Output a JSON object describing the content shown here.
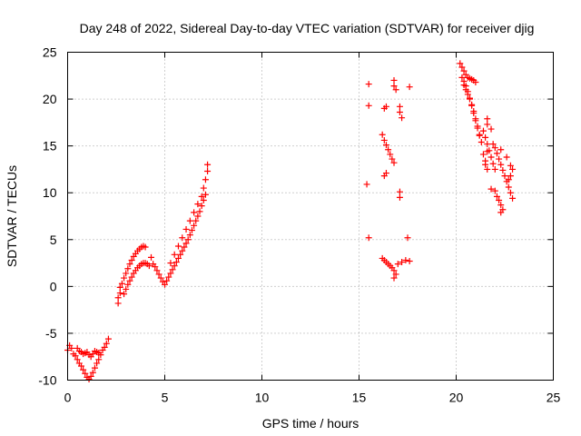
{
  "chart_data": {
    "type": "scatter",
    "title": "Day 248 of 2022, Sidereal Day-to-day VTEC variation (SDTVAR) for receiver djig",
    "xlabel": "GPS time / hours",
    "ylabel": "SDTVAR / TECUs",
    "xlim": [
      0,
      25
    ],
    "ylim": [
      -10,
      25
    ],
    "xticks": [
      0,
      5,
      10,
      15,
      20,
      25
    ],
    "yticks": [
      -10,
      -5,
      0,
      5,
      10,
      15,
      20,
      25
    ],
    "xtick_labels": [
      "0",
      "5",
      "10",
      "15",
      "20",
      "25"
    ],
    "ytick_labels": [
      "-10",
      "-5",
      "0",
      "5",
      "10",
      "15",
      "20",
      "25"
    ],
    "grid": true,
    "marker": "plus",
    "color": "#ff0000",
    "series": [
      {
        "name": "SDTVAR",
        "points": [
          [
            0.0,
            -6.8
          ],
          [
            0.1,
            -6.3
          ],
          [
            0.2,
            -6.6
          ],
          [
            0.3,
            -7.2
          ],
          [
            0.4,
            -7.4
          ],
          [
            0.5,
            -7.8
          ],
          [
            0.6,
            -8.2
          ],
          [
            0.7,
            -8.5
          ],
          [
            0.8,
            -8.9
          ],
          [
            0.9,
            -9.3
          ],
          [
            1.0,
            -9.7
          ],
          [
            1.1,
            -9.9
          ],
          [
            1.2,
            -9.6
          ],
          [
            1.3,
            -9.2
          ],
          [
            1.4,
            -8.7
          ],
          [
            1.5,
            -8.2
          ],
          [
            1.6,
            -7.8
          ],
          [
            1.7,
            -7.3
          ],
          [
            1.8,
            -6.8
          ],
          [
            1.9,
            -6.5
          ],
          [
            2.0,
            -6.1
          ],
          [
            2.1,
            -5.6
          ],
          [
            0.5,
            -6.6
          ],
          [
            0.6,
            -6.9
          ],
          [
            0.7,
            -7.0
          ],
          [
            0.8,
            -7.2
          ],
          [
            0.9,
            -7.1
          ],
          [
            1.0,
            -7.0
          ],
          [
            1.1,
            -7.3
          ],
          [
            1.2,
            -7.5
          ],
          [
            1.3,
            -7.2
          ],
          [
            1.4,
            -6.9
          ],
          [
            1.5,
            -7.0
          ],
          [
            1.6,
            -7.1
          ],
          [
            2.6,
            -1.8
          ],
          [
            2.6,
            -1.2
          ],
          [
            2.7,
            -0.7
          ],
          [
            2.7,
            -0.1
          ],
          [
            2.8,
            0.3
          ],
          [
            2.9,
            0.9
          ],
          [
            3.0,
            1.4
          ],
          [
            3.1,
            1.9
          ],
          [
            3.2,
            2.4
          ],
          [
            3.3,
            2.8
          ],
          [
            3.4,
            3.2
          ],
          [
            3.5,
            3.5
          ],
          [
            3.6,
            3.8
          ],
          [
            3.7,
            4.0
          ],
          [
            3.8,
            4.2
          ],
          [
            3.9,
            4.3
          ],
          [
            4.0,
            4.2
          ],
          [
            2.9,
            -0.8
          ],
          [
            3.0,
            -0.3
          ],
          [
            3.1,
            0.2
          ],
          [
            3.2,
            0.6
          ],
          [
            3.3,
            1.0
          ],
          [
            3.4,
            1.4
          ],
          [
            3.5,
            1.7
          ],
          [
            3.6,
            2.0
          ],
          [
            3.7,
            2.2
          ],
          [
            3.8,
            2.4
          ],
          [
            3.9,
            2.5
          ],
          [
            4.0,
            2.5
          ],
          [
            4.1,
            2.4
          ],
          [
            4.2,
            2.2
          ],
          [
            4.3,
            3.1
          ],
          [
            4.4,
            2.4
          ],
          [
            4.5,
            2.1
          ],
          [
            4.6,
            1.7
          ],
          [
            4.7,
            1.3
          ],
          [
            4.8,
            0.9
          ],
          [
            4.9,
            0.5
          ],
          [
            5.0,
            0.2
          ],
          [
            5.1,
            0.6
          ],
          [
            5.2,
            1.0
          ],
          [
            5.3,
            1.4
          ],
          [
            5.4,
            1.8
          ],
          [
            5.5,
            2.2
          ],
          [
            5.6,
            2.6
          ],
          [
            5.7,
            3.0
          ],
          [
            5.8,
            3.4
          ],
          [
            5.9,
            3.8
          ],
          [
            6.0,
            4.2
          ],
          [
            6.1,
            4.6
          ],
          [
            6.2,
            5.0
          ],
          [
            6.3,
            5.5
          ],
          [
            6.4,
            6.0
          ],
          [
            6.5,
            6.5
          ],
          [
            6.6,
            7.0
          ],
          [
            6.7,
            7.5
          ],
          [
            6.8,
            8.0
          ],
          [
            6.9,
            8.6
          ],
          [
            7.0,
            9.2
          ],
          [
            7.1,
            9.8
          ],
          [
            5.3,
            2.5
          ],
          [
            5.5,
            3.4
          ],
          [
            5.7,
            4.3
          ],
          [
            5.9,
            5.2
          ],
          [
            6.1,
            6.1
          ],
          [
            6.3,
            7.0
          ],
          [
            6.5,
            7.9
          ],
          [
            6.7,
            8.8
          ],
          [
            6.9,
            9.6
          ],
          [
            7.0,
            10.5
          ],
          [
            7.1,
            11.4
          ],
          [
            7.2,
            12.3
          ],
          [
            7.2,
            13.0
          ],
          [
            15.5,
            21.6
          ],
          [
            15.5,
            19.3
          ],
          [
            15.4,
            10.9
          ],
          [
            15.5,
            5.2
          ],
          [
            16.3,
            19.0
          ],
          [
            16.4,
            19.2
          ],
          [
            16.2,
            16.2
          ],
          [
            16.3,
            15.6
          ],
          [
            16.4,
            15.1
          ],
          [
            16.5,
            14.6
          ],
          [
            16.6,
            14.1
          ],
          [
            16.7,
            13.6
          ],
          [
            16.8,
            13.2
          ],
          [
            16.4,
            12.1
          ],
          [
            16.3,
            11.8
          ],
          [
            16.8,
            22.0
          ],
          [
            16.8,
            21.4
          ],
          [
            16.9,
            21.0
          ],
          [
            17.1,
            19.2
          ],
          [
            17.1,
            18.6
          ],
          [
            17.2,
            18.0
          ],
          [
            17.1,
            10.1
          ],
          [
            17.1,
            9.5
          ],
          [
            16.2,
            3.0
          ],
          [
            16.3,
            2.8
          ],
          [
            16.4,
            2.6
          ],
          [
            16.5,
            2.4
          ],
          [
            16.6,
            2.2
          ],
          [
            16.7,
            2.0
          ],
          [
            16.8,
            1.7
          ],
          [
            16.9,
            1.3
          ],
          [
            16.8,
            0.9
          ],
          [
            17.0,
            2.4
          ],
          [
            17.2,
            2.6
          ],
          [
            17.4,
            2.8
          ],
          [
            17.6,
            2.7
          ],
          [
            17.5,
            5.2
          ],
          [
            17.6,
            21.3
          ],
          [
            20.2,
            23.8
          ],
          [
            20.3,
            23.4
          ],
          [
            20.4,
            23.0
          ],
          [
            20.5,
            22.6
          ],
          [
            20.6,
            22.3
          ],
          [
            20.7,
            22.2
          ],
          [
            20.8,
            22.1
          ],
          [
            20.9,
            22.0
          ],
          [
            21.0,
            21.8
          ],
          [
            20.4,
            21.5
          ],
          [
            20.5,
            21.0
          ],
          [
            20.6,
            20.5
          ],
          [
            20.7,
            20.0
          ],
          [
            20.8,
            19.4
          ],
          [
            20.9,
            18.7
          ],
          [
            21.0,
            17.9
          ],
          [
            21.1,
            17.1
          ],
          [
            21.2,
            16.2
          ],
          [
            21.3,
            15.4
          ],
          [
            20.3,
            22.3
          ],
          [
            20.4,
            21.9
          ],
          [
            20.5,
            21.4
          ],
          [
            20.6,
            20.8
          ],
          [
            20.7,
            20.1
          ],
          [
            20.8,
            19.3
          ],
          [
            20.9,
            18.5
          ],
          [
            21.0,
            17.7
          ],
          [
            21.1,
            16.9
          ],
          [
            21.2,
            16.1
          ],
          [
            21.4,
            16.6
          ],
          [
            21.5,
            15.9
          ],
          [
            21.6,
            15.2
          ],
          [
            21.7,
            14.5
          ],
          [
            21.8,
            13.8
          ],
          [
            21.9,
            13.1
          ],
          [
            22.0,
            12.5
          ],
          [
            21.5,
            13.0
          ],
          [
            21.6,
            12.5
          ],
          [
            21.4,
            14.1
          ],
          [
            21.6,
            14.4
          ],
          [
            21.5,
            13.4
          ],
          [
            21.9,
            15.2
          ],
          [
            22.0,
            14.8
          ],
          [
            22.1,
            14.2
          ],
          [
            22.2,
            13.6
          ],
          [
            22.3,
            13.0
          ],
          [
            22.4,
            12.4
          ],
          [
            22.5,
            11.8
          ],
          [
            22.6,
            11.2
          ],
          [
            22.7,
            10.6
          ],
          [
            22.8,
            10.0
          ],
          [
            22.9,
            9.4
          ],
          [
            22.8,
            12.9
          ],
          [
            22.9,
            12.5
          ],
          [
            22.7,
            11.4
          ],
          [
            21.8,
            10.4
          ],
          [
            22.0,
            10.2
          ],
          [
            22.1,
            9.6
          ],
          [
            22.2,
            9.2
          ],
          [
            22.3,
            8.7
          ],
          [
            22.4,
            8.2
          ],
          [
            22.3,
            7.9
          ],
          [
            21.6,
            17.9
          ],
          [
            21.6,
            17.3
          ],
          [
            21.8,
            16.8
          ],
          [
            22.3,
            14.6
          ],
          [
            22.6,
            13.8
          ],
          [
            22.8,
            11.8
          ]
        ]
      }
    ]
  }
}
